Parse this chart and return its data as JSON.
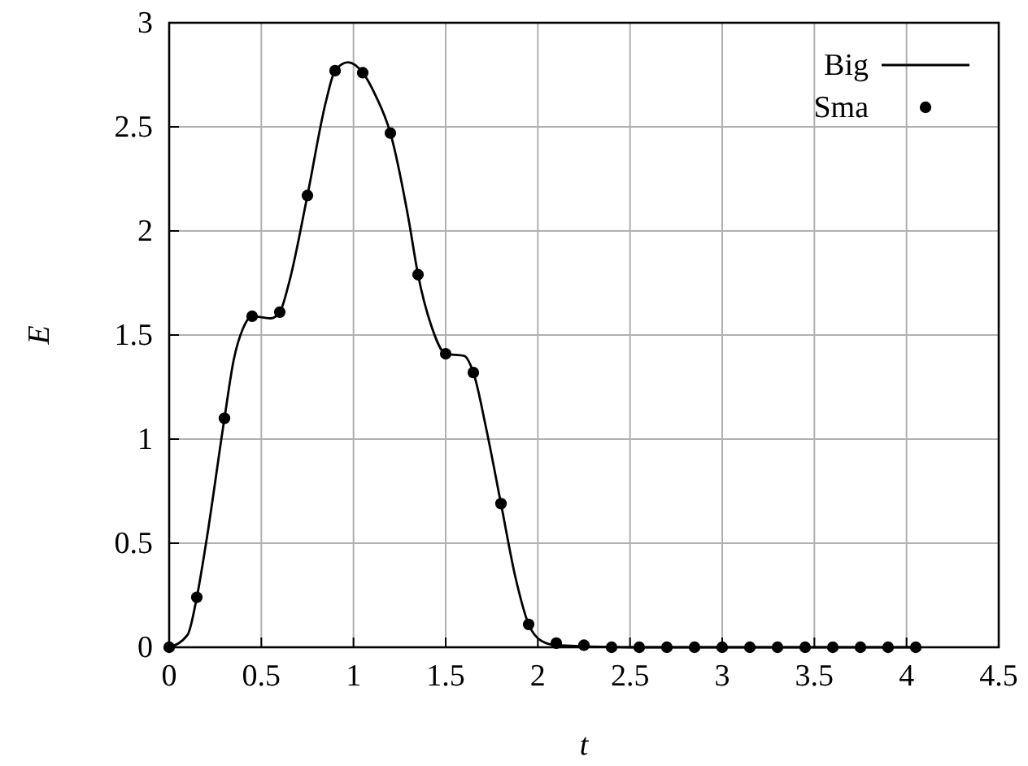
{
  "chart_data": {
    "type": "line",
    "xlabel": "t",
    "ylabel": "E",
    "xlim": [
      0,
      4.5
    ],
    "ylim": [
      0,
      3
    ],
    "xticks": [
      0,
      0.5,
      1,
      1.5,
      2,
      2.5,
      3,
      3.5,
      4,
      4.5
    ],
    "yticks": [
      0,
      0.5,
      1,
      1.5,
      2,
      2.5,
      3
    ],
    "grid": true,
    "legend": "top right",
    "series": [
      {
        "name": "Big",
        "type": "line",
        "color": "#000000",
        "marker": "none",
        "line_style": "solid",
        "x": [
          0,
          0.1,
          0.15,
          0.2,
          0.3,
          0.35,
          0.4,
          0.45,
          0.55,
          0.6,
          0.65,
          0.75,
          0.85,
          0.9,
          0.97,
          1.05,
          1.12,
          1.2,
          1.3,
          1.35,
          1.42,
          1.5,
          1.6,
          1.65,
          1.72,
          1.8,
          1.88,
          1.95,
          2.02,
          2.1,
          2.5,
          4.05
        ],
        "values": [
          0,
          0.06,
          0.24,
          0.5,
          1.1,
          1.38,
          1.53,
          1.59,
          1.58,
          1.61,
          1.75,
          2.17,
          2.62,
          2.77,
          2.81,
          2.76,
          2.65,
          2.47,
          2.05,
          1.79,
          1.55,
          1.41,
          1.4,
          1.32,
          1.05,
          0.69,
          0.33,
          0.11,
          0.03,
          0.01,
          0,
          0
        ]
      },
      {
        "name": "Sma",
        "type": "scatter",
        "color": "#000000",
        "marker": "circle",
        "x": [
          0,
          0.15,
          0.3,
          0.45,
          0.6,
          0.75,
          0.9,
          1.05,
          1.2,
          1.35,
          1.5,
          1.65,
          1.8,
          1.95,
          2.1,
          2.25,
          2.4,
          2.55,
          2.7,
          2.85,
          3,
          3.15,
          3.3,
          3.45,
          3.6,
          3.75,
          3.9,
          4.05
        ],
        "values": [
          0,
          0.24,
          1.1,
          1.59,
          1.61,
          2.17,
          2.77,
          2.76,
          2.47,
          1.79,
          1.41,
          1.32,
          0.69,
          0.11,
          0.02,
          0.01,
          0,
          0,
          0,
          0,
          0,
          0,
          0,
          0,
          0,
          0,
          0,
          0
        ]
      }
    ]
  }
}
